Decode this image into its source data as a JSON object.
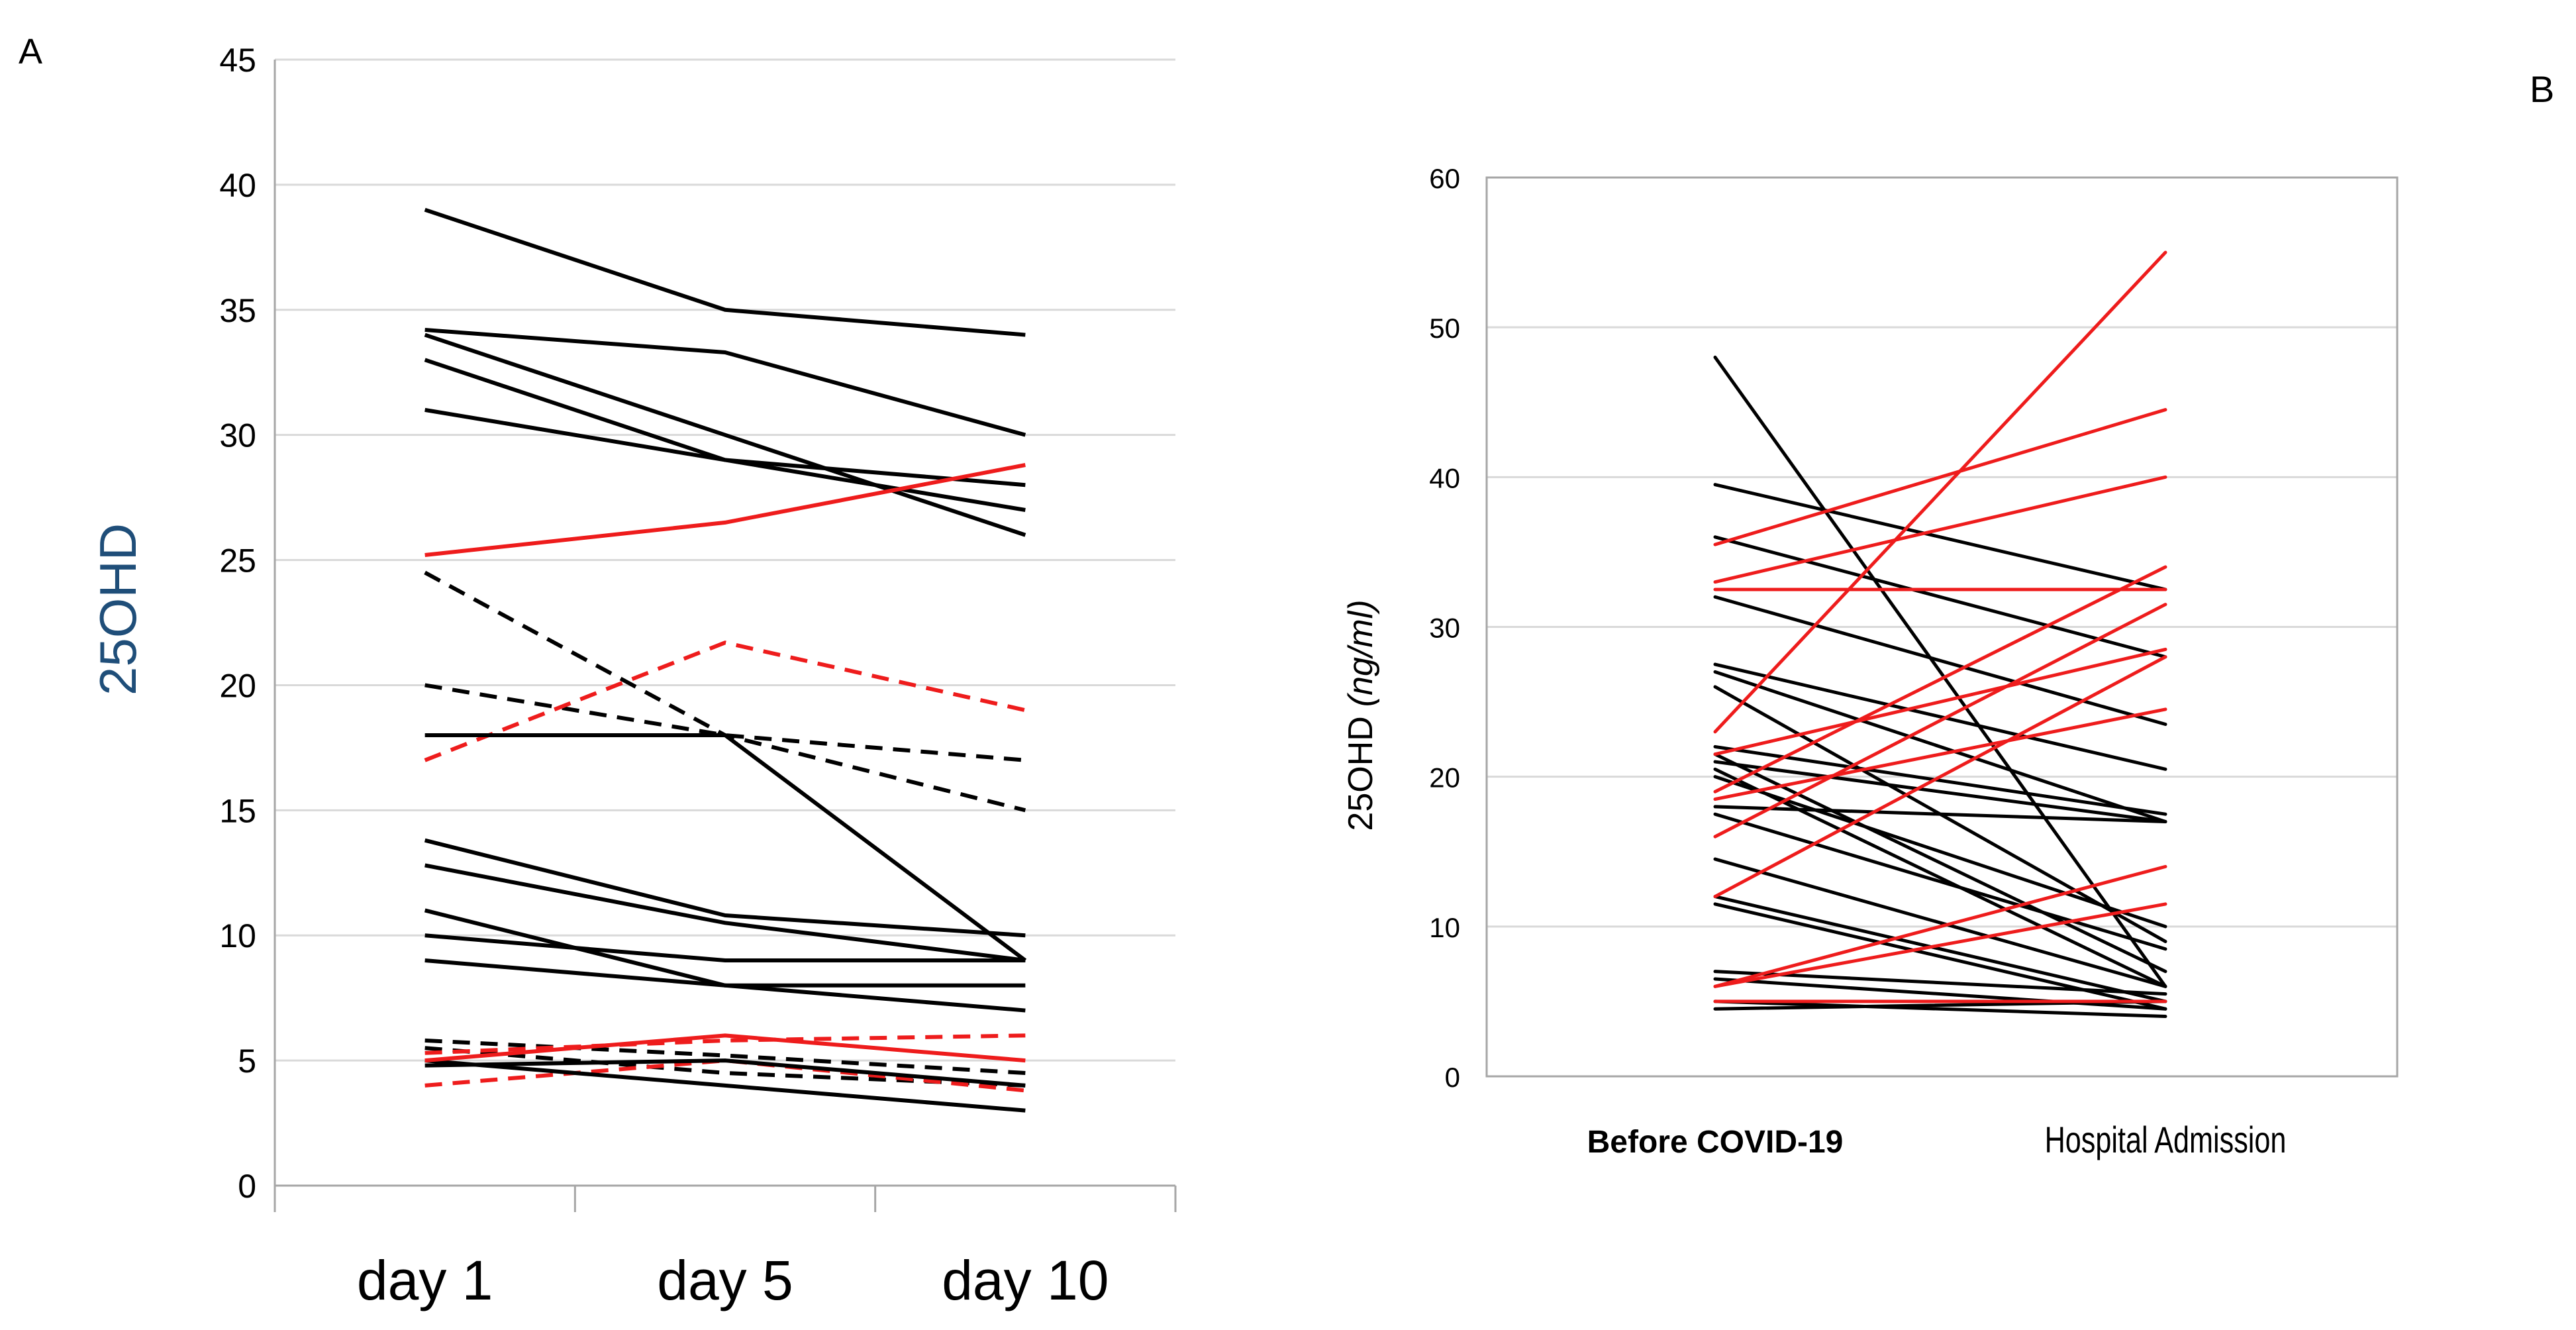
{
  "colors": {
    "black": "#000000",
    "red": "#ee1c1c",
    "grid": "#d9d9d9",
    "axis": "#a6a6a6",
    "yTitleA": "#1f4e79"
  },
  "chart_data": [
    {
      "panel_label": "A",
      "type": "line",
      "xlabel": "",
      "ylabel": "25OHD",
      "categories": [
        "day 1",
        "day 5",
        "day 10"
      ],
      "ylim": [
        0,
        45
      ],
      "yticks": [
        0,
        5,
        10,
        15,
        20,
        25,
        30,
        35,
        40,
        45
      ],
      "grid": true,
      "series": [
        {
          "name": "s1",
          "color": "black",
          "dashed": false,
          "values": [
            39,
            35,
            34
          ]
        },
        {
          "name": "s2",
          "color": "black",
          "dashed": false,
          "values": [
            34.2,
            33.3,
            30
          ]
        },
        {
          "name": "s3",
          "color": "black",
          "dashed": false,
          "values": [
            34,
            30,
            26
          ]
        },
        {
          "name": "s4",
          "color": "black",
          "dashed": false,
          "values": [
            33,
            29,
            27
          ]
        },
        {
          "name": "s5",
          "color": "black",
          "dashed": false,
          "values": [
            31,
            29,
            28
          ]
        },
        {
          "name": "s6",
          "color": "red",
          "dashed": false,
          "values": [
            25.2,
            26.5,
            28.8
          ]
        },
        {
          "name": "s7",
          "color": "black",
          "dashed": true,
          "values": [
            24.5,
            18,
            15
          ]
        },
        {
          "name": "s8",
          "color": "black",
          "dashed": true,
          "values": [
            20,
            18,
            17
          ]
        },
        {
          "name": "s9",
          "color": "red",
          "dashed": true,
          "values": [
            17,
            21.7,
            19
          ]
        },
        {
          "name": "s10",
          "color": "black",
          "dashed": false,
          "values": [
            18,
            18,
            9
          ]
        },
        {
          "name": "s11",
          "color": "black",
          "dashed": false,
          "values": [
            13.8,
            10.8,
            10
          ]
        },
        {
          "name": "s12",
          "color": "black",
          "dashed": false,
          "values": [
            12.8,
            10.5,
            9
          ]
        },
        {
          "name": "s13",
          "color": "black",
          "dashed": false,
          "values": [
            11,
            8,
            7
          ]
        },
        {
          "name": "s14",
          "color": "black",
          "dashed": false,
          "values": [
            10,
            9,
            9
          ]
        },
        {
          "name": "s15",
          "color": "black",
          "dashed": false,
          "values": [
            9,
            8,
            8
          ]
        },
        {
          "name": "s16",
          "color": "black",
          "dashed": true,
          "values": [
            5.8,
            5.2,
            4.5
          ]
        },
        {
          "name": "s17",
          "color": "black",
          "dashed": true,
          "values": [
            5.5,
            4.5,
            4
          ]
        },
        {
          "name": "s18",
          "color": "red",
          "dashed": true,
          "values": [
            5.3,
            5.8,
            6
          ]
        },
        {
          "name": "s19",
          "color": "red",
          "dashed": true,
          "values": [
            4,
            5,
            3.8
          ]
        },
        {
          "name": "s20",
          "color": "black",
          "dashed": false,
          "values": [
            5,
            4,
            3
          ]
        },
        {
          "name": "s21",
          "color": "red",
          "dashed": false,
          "values": [
            5,
            6,
            5
          ]
        },
        {
          "name": "s22",
          "color": "black",
          "dashed": false,
          "values": [
            4.8,
            5,
            4
          ]
        }
      ]
    },
    {
      "panel_label": "B",
      "type": "line",
      "xlabel": "",
      "ylabel": "25OHD",
      "ylabel_unit": "(ng/ml)",
      "categories": [
        "Before COVID-19",
        "Hospital Admission"
      ],
      "ylim": [
        0,
        60
      ],
      "yticks": [
        0,
        10,
        20,
        30,
        40,
        50,
        60
      ],
      "grid": true,
      "series": [
        {
          "name": "b1",
          "color": "black",
          "values": [
            48,
            6
          ]
        },
        {
          "name": "b2",
          "color": "black",
          "values": [
            39.5,
            32.5
          ]
        },
        {
          "name": "b3",
          "color": "black",
          "values": [
            36,
            28
          ]
        },
        {
          "name": "b4",
          "color": "black",
          "values": [
            32,
            23.5
          ]
        },
        {
          "name": "b5",
          "color": "black",
          "values": [
            27.5,
            20.5
          ]
        },
        {
          "name": "b6",
          "color": "black",
          "values": [
            27,
            17
          ]
        },
        {
          "name": "b7",
          "color": "black",
          "values": [
            26,
            9
          ]
        },
        {
          "name": "b8",
          "color": "black",
          "values": [
            22,
            17.5
          ]
        },
        {
          "name": "b9",
          "color": "black",
          "values": [
            21.5,
            7
          ]
        },
        {
          "name": "b10",
          "color": "black",
          "values": [
            21,
            17
          ]
        },
        {
          "name": "b11",
          "color": "black",
          "values": [
            20.5,
            6
          ]
        },
        {
          "name": "b12",
          "color": "black",
          "values": [
            20,
            10
          ]
        },
        {
          "name": "b13",
          "color": "black",
          "values": [
            18,
            17
          ]
        },
        {
          "name": "b14",
          "color": "black",
          "values": [
            17.5,
            8.5
          ]
        },
        {
          "name": "b15",
          "color": "black",
          "values": [
            14.5,
            6
          ]
        },
        {
          "name": "b16",
          "color": "black",
          "values": [
            12,
            5
          ]
        },
        {
          "name": "b17",
          "color": "black",
          "values": [
            11.5,
            4.5
          ]
        },
        {
          "name": "b18",
          "color": "black",
          "values": [
            7,
            5.5
          ]
        },
        {
          "name": "b19",
          "color": "black",
          "values": [
            6.5,
            4.5
          ]
        },
        {
          "name": "b20",
          "color": "black",
          "values": [
            5,
            4
          ]
        },
        {
          "name": "b21",
          "color": "black",
          "values": [
            4.5,
            5
          ]
        },
        {
          "name": "b22",
          "color": "red",
          "values": [
            35.5,
            44.5
          ]
        },
        {
          "name": "b23",
          "color": "red",
          "values": [
            33,
            40
          ]
        },
        {
          "name": "b24",
          "color": "red",
          "values": [
            32.5,
            32.5
          ]
        },
        {
          "name": "b25",
          "color": "red",
          "values": [
            23,
            55
          ]
        },
        {
          "name": "b26",
          "color": "red",
          "values": [
            21.5,
            28.5
          ]
        },
        {
          "name": "b27",
          "color": "red",
          "values": [
            19,
            34
          ]
        },
        {
          "name": "b28",
          "color": "red",
          "values": [
            18.5,
            24.5
          ]
        },
        {
          "name": "b29",
          "color": "red",
          "values": [
            16,
            31.5
          ]
        },
        {
          "name": "b30",
          "color": "red",
          "values": [
            12,
            28
          ]
        },
        {
          "name": "b31",
          "color": "red",
          "values": [
            6,
            14
          ]
        },
        {
          "name": "b32",
          "color": "red",
          "values": [
            6,
            11.5
          ]
        },
        {
          "name": "b33",
          "color": "red",
          "values": [
            5,
            5
          ]
        }
      ]
    }
  ]
}
